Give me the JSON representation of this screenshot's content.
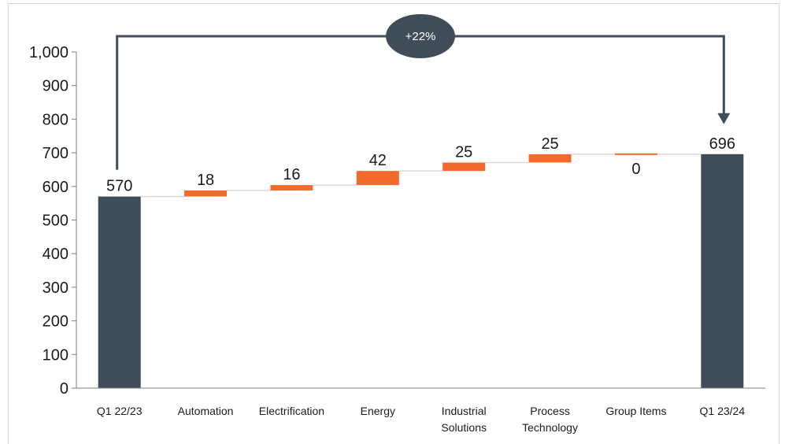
{
  "chart_data": {
    "type": "bar",
    "subtype": "waterfall",
    "categories": [
      [
        "Q1 22/23"
      ],
      [
        "Automation"
      ],
      [
        "Electrification"
      ],
      [
        "Energy"
      ],
      [
        "Industrial",
        "Solutions"
      ],
      [
        "Process",
        "Technology"
      ],
      [
        "Group Items"
      ],
      [
        "Q1 23/24"
      ]
    ],
    "values": [
      570,
      18,
      16,
      42,
      25,
      25,
      0,
      696
    ],
    "value_labels": [
      "570",
      "18",
      "16",
      "42",
      "25",
      "25",
      "0",
      "696"
    ],
    "kinds": [
      "total",
      "delta",
      "delta",
      "delta",
      "delta",
      "delta",
      "delta",
      "total"
    ],
    "ylim": [
      0,
      1000
    ],
    "yticks": [
      0,
      100,
      200,
      300,
      400,
      500,
      600,
      700,
      800,
      900,
      1000
    ],
    "ytick_labels": [
      "0",
      "100",
      "200",
      "300",
      "400",
      "500",
      "600",
      "700",
      "800",
      "900",
      "1,000"
    ],
    "change_label": "+22%",
    "colors": {
      "total": "#414c59",
      "delta": "#f26b2d",
      "connector": "#d9d9d9",
      "axis": "#7f7f7f",
      "arrow": "#414c59"
    }
  }
}
